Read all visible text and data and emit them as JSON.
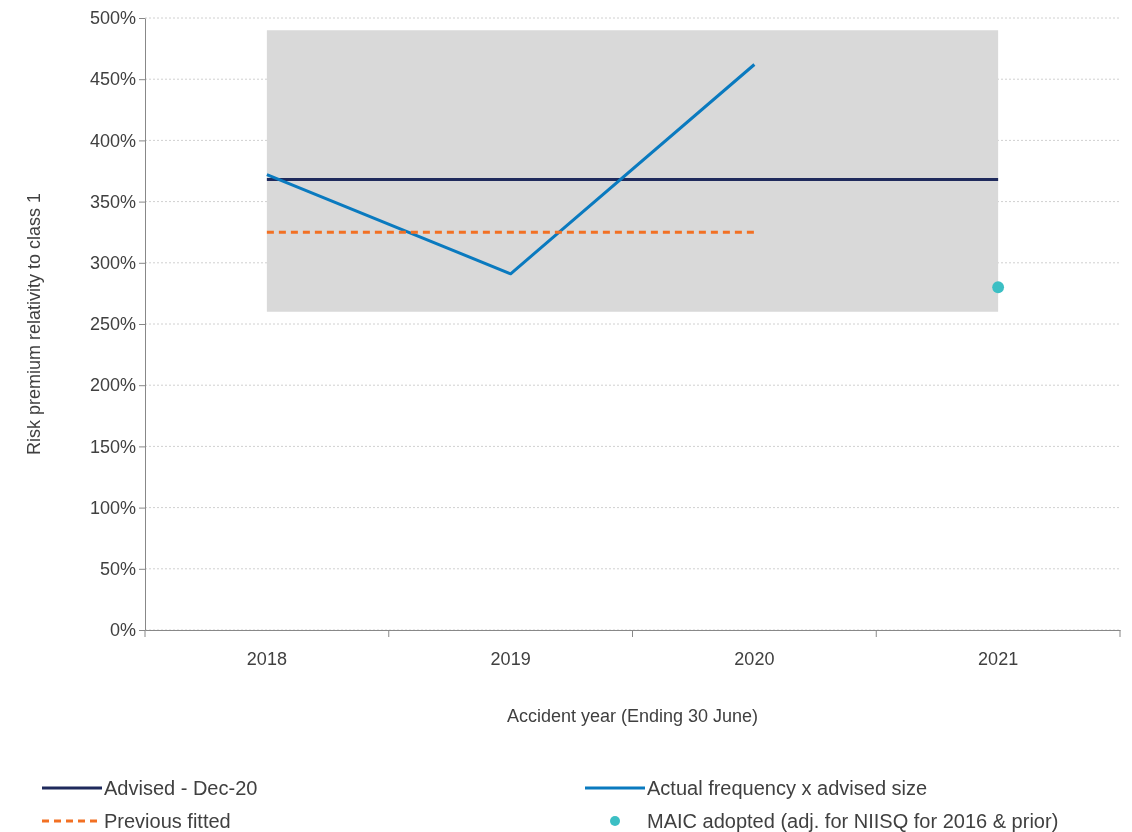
{
  "chart_data": {
    "type": "line",
    "xlabel": "Accident year (Ending 30 June)",
    "ylabel": "Risk premium relativity to class 1",
    "categories": [
      "2018",
      "2019",
      "2020",
      "2021"
    ],
    "ylim": [
      0,
      500
    ],
    "yticks": [
      {
        "value": 0,
        "label": "0%"
      },
      {
        "value": 50,
        "label": "50%"
      },
      {
        "value": 100,
        "label": "100%"
      },
      {
        "value": 150,
        "label": "150%"
      },
      {
        "value": 200,
        "label": "200%"
      },
      {
        "value": 250,
        "label": "250%"
      },
      {
        "value": 300,
        "label": "300%"
      },
      {
        "value": 350,
        "label": "350%"
      },
      {
        "value": 400,
        "label": "400%"
      },
      {
        "value": 450,
        "label": "450%"
      },
      {
        "value": 500,
        "label": "500%"
      }
    ],
    "grid": "y",
    "legend": "bottom",
    "marker": "none",
    "bands": [
      {
        "axis": "y",
        "from": 260,
        "to": 490,
        "color": "#d9d9d9"
      }
    ],
    "series": [
      {
        "name": "Advised - Dec-20",
        "color": "#1f2a5c",
        "values": [
          368,
          368,
          368,
          368
        ],
        "line_style": "solid"
      },
      {
        "name": "Actual frequency x advised size",
        "color": "#0a7abf",
        "values": [
          372,
          291,
          462,
          null
        ],
        "line_style": "solid"
      },
      {
        "name": "Previous fitted",
        "color": "#f27023",
        "values": [
          325,
          325,
          325,
          null
        ],
        "line_style": "dashed"
      },
      {
        "name": "MAIC adopted (adj. for NIISQ for 2016 & prior)",
        "type": "scatter",
        "marker": "circle",
        "color": "#3cbfc4",
        "values": [
          null,
          null,
          null,
          280
        ]
      }
    ]
  }
}
